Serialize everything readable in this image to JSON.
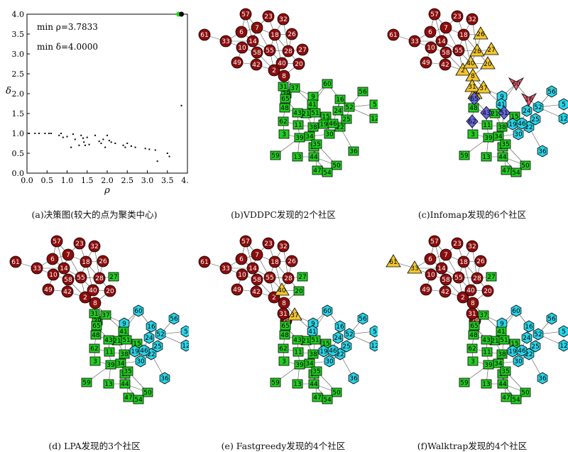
{
  "decision_graph": {
    "caption": "(a)决策图(较大的点为聚类中心)",
    "min_rho": "min ρ=3.7833",
    "min_delta": "min δ=4.0000",
    "xlabel": "ρ",
    "ylabel": "δ",
    "chart_data": {
      "type": "scatter",
      "xlim": [
        0,
        4
      ],
      "ylim": [
        0,
        4
      ],
      "xticks": [
        "0.0",
        "0.5",
        "1.0",
        "1.5",
        "2.0",
        "2.5",
        "3.0",
        "3.5",
        "4.0"
      ],
      "yticks": [
        "0.0",
        "0.5",
        "1.0",
        "1.5",
        "2.0",
        "2.5",
        "3.0",
        "3.5",
        "4.0"
      ],
      "centers": [
        {
          "x": 3.78,
          "y": 4.0,
          "color": "#22dd22"
        },
        {
          "x": 3.85,
          "y": 4.0,
          "color": "#000000"
        }
      ],
      "points": [
        [
          0.05,
          1.0
        ],
        [
          0.2,
          1.0
        ],
        [
          0.3,
          1.0
        ],
        [
          0.45,
          1.0
        ],
        [
          0.55,
          1.0
        ],
        [
          0.6,
          1.0
        ],
        [
          0.8,
          0.95
        ],
        [
          0.85,
          1.0
        ],
        [
          0.9,
          0.9
        ],
        [
          1.0,
          0.92
        ],
        [
          1.1,
          0.65
        ],
        [
          1.15,
          0.98
        ],
        [
          1.2,
          0.85
        ],
        [
          1.3,
          0.7
        ],
        [
          1.35,
          0.95
        ],
        [
          1.4,
          0.88
        ],
        [
          1.42,
          0.78
        ],
        [
          1.45,
          0.7
        ],
        [
          1.5,
          0.9
        ],
        [
          1.55,
          0.72
        ],
        [
          1.7,
          0.95
        ],
        [
          1.8,
          0.8
        ],
        [
          1.85,
          0.75
        ],
        [
          1.9,
          0.85
        ],
        [
          1.95,
          0.65
        ],
        [
          2.0,
          0.95
        ],
        [
          2.05,
          0.82
        ],
        [
          2.1,
          0.78
        ],
        [
          2.2,
          0.75
        ],
        [
          2.4,
          0.7
        ],
        [
          2.45,
          0.65
        ],
        [
          2.5,
          0.75
        ],
        [
          2.6,
          0.68
        ],
        [
          2.7,
          0.65
        ],
        [
          2.95,
          0.62
        ],
        [
          3.05,
          0.6
        ],
        [
          3.2,
          0.58
        ],
        [
          3.25,
          0.3
        ],
        [
          3.5,
          0.5
        ],
        [
          3.55,
          0.42
        ],
        [
          3.85,
          1.7
        ]
      ]
    }
  },
  "panels": [
    {
      "caption": "(b)VDDPC发现的2个社区"
    },
    {
      "caption": "(c)Infomap发现的6个社区"
    },
    {
      "caption": "(d) LPA发现的3个社区"
    },
    {
      "caption": "(e) Fastgreedy发现的4个社区"
    },
    {
      "caption": "(f)Walktrap发现的4个社区"
    }
  ],
  "colors": {
    "red": "#8b0d0d",
    "green": "#22cc22",
    "cyan": "#2ad4e6",
    "yellow": "#f2c72a",
    "pink": "#e86070",
    "blue": "#6666dd"
  },
  "network": {
    "labels": {
      "57": "57",
      "23": "23",
      "32": "32",
      "61": "61",
      "6": "6",
      "7": "7",
      "26": "26",
      "33": "33",
      "14": "14",
      "18": "18",
      "10": "10",
      "58": "58",
      "55": "55",
      "28": "28",
      "27": "27",
      "49": "49",
      "42": "42",
      "40": "40",
      "20": "20",
      "2": "2",
      "8": "8",
      "31": "31",
      "37": "37",
      "60": "60",
      "29": "29",
      "9": "9",
      "16": "16",
      "56": "56",
      "65": "65",
      "41": "41",
      "52": "52",
      "5": "5",
      "48": "48",
      "43": "43",
      "51": "51",
      "12": "12",
      "62": "62",
      "11": "11",
      "38": "38",
      "46": "46",
      "21": "21",
      "22": "22",
      "3": "3",
      "34": "34",
      "30": "30",
      "39": "39",
      "35": "35",
      "36": "36",
      "15": "15",
      "24": "24",
      "25": "25",
      "19": "19",
      "59": "59",
      "13": "13",
      "44": "44",
      "17": "17",
      "50": "50",
      "47": "47",
      "54": "54"
    },
    "communities": {
      "b": {
        "red": [
          "57",
          "23",
          "32",
          "61",
          "6",
          "7",
          "26",
          "33",
          "14",
          "18",
          "10",
          "58",
          "55",
          "28",
          "27",
          "49",
          "42",
          "40",
          "20",
          "2",
          "8"
        ]
      },
      "c": {
        "red": [
          "57",
          "23",
          "32",
          "61",
          "33",
          "6",
          "7",
          "14",
          "18",
          "10",
          "58",
          "55",
          "49",
          "42"
        ],
        "yellow": [
          "26",
          "28",
          "27",
          "40",
          "20",
          "2",
          "8",
          "29",
          "31",
          "37"
        ],
        "pink": [
          "60",
          "16"
        ],
        "blue": [
          "43",
          "62",
          "65",
          "51"
        ],
        "cyan": [
          "56",
          "52",
          "5",
          "12",
          "36",
          "24",
          "22",
          "46",
          "30",
          "25",
          "41",
          "9",
          "19"
        ]
      },
      "d": {
        "red": [
          "57",
          "23",
          "32",
          "61",
          "6",
          "7",
          "26",
          "33",
          "14",
          "18",
          "10",
          "58",
          "55",
          "28",
          "42",
          "49",
          "40",
          "20",
          "2",
          "8"
        ],
        "cyan": [
          "60",
          "16",
          "56",
          "52",
          "5",
          "12",
          "36",
          "24",
          "46",
          "22",
          "25",
          "30",
          "19",
          "9"
        ]
      },
      "e": {
        "red": [
          "57",
          "23",
          "32",
          "61",
          "6",
          "7",
          "26",
          "33",
          "14",
          "18",
          "10",
          "58",
          "55",
          "28",
          "42",
          "49",
          "2",
          "8",
          "29",
          "31"
        ],
        "yellow": [
          "40",
          "37"
        ],
        "cyan": [
          "60",
          "16",
          "56",
          "52",
          "5",
          "12",
          "36",
          "24",
          "46",
          "22",
          "25",
          "30",
          "19",
          "9",
          "41"
        ]
      },
      "f": {
        "red": [
          "57",
          "23",
          "32",
          "6",
          "7",
          "26",
          "14",
          "18",
          "10",
          "58",
          "55",
          "28",
          "42",
          "49",
          "40",
          "20",
          "2",
          "8",
          "31",
          "29"
        ],
        "yellow": [
          "61",
          "33"
        ],
        "cyan": [
          "60",
          "16",
          "56",
          "52",
          "5",
          "12",
          "36",
          "24",
          "46",
          "22",
          "25",
          "30",
          "19",
          "9"
        ]
      }
    }
  }
}
